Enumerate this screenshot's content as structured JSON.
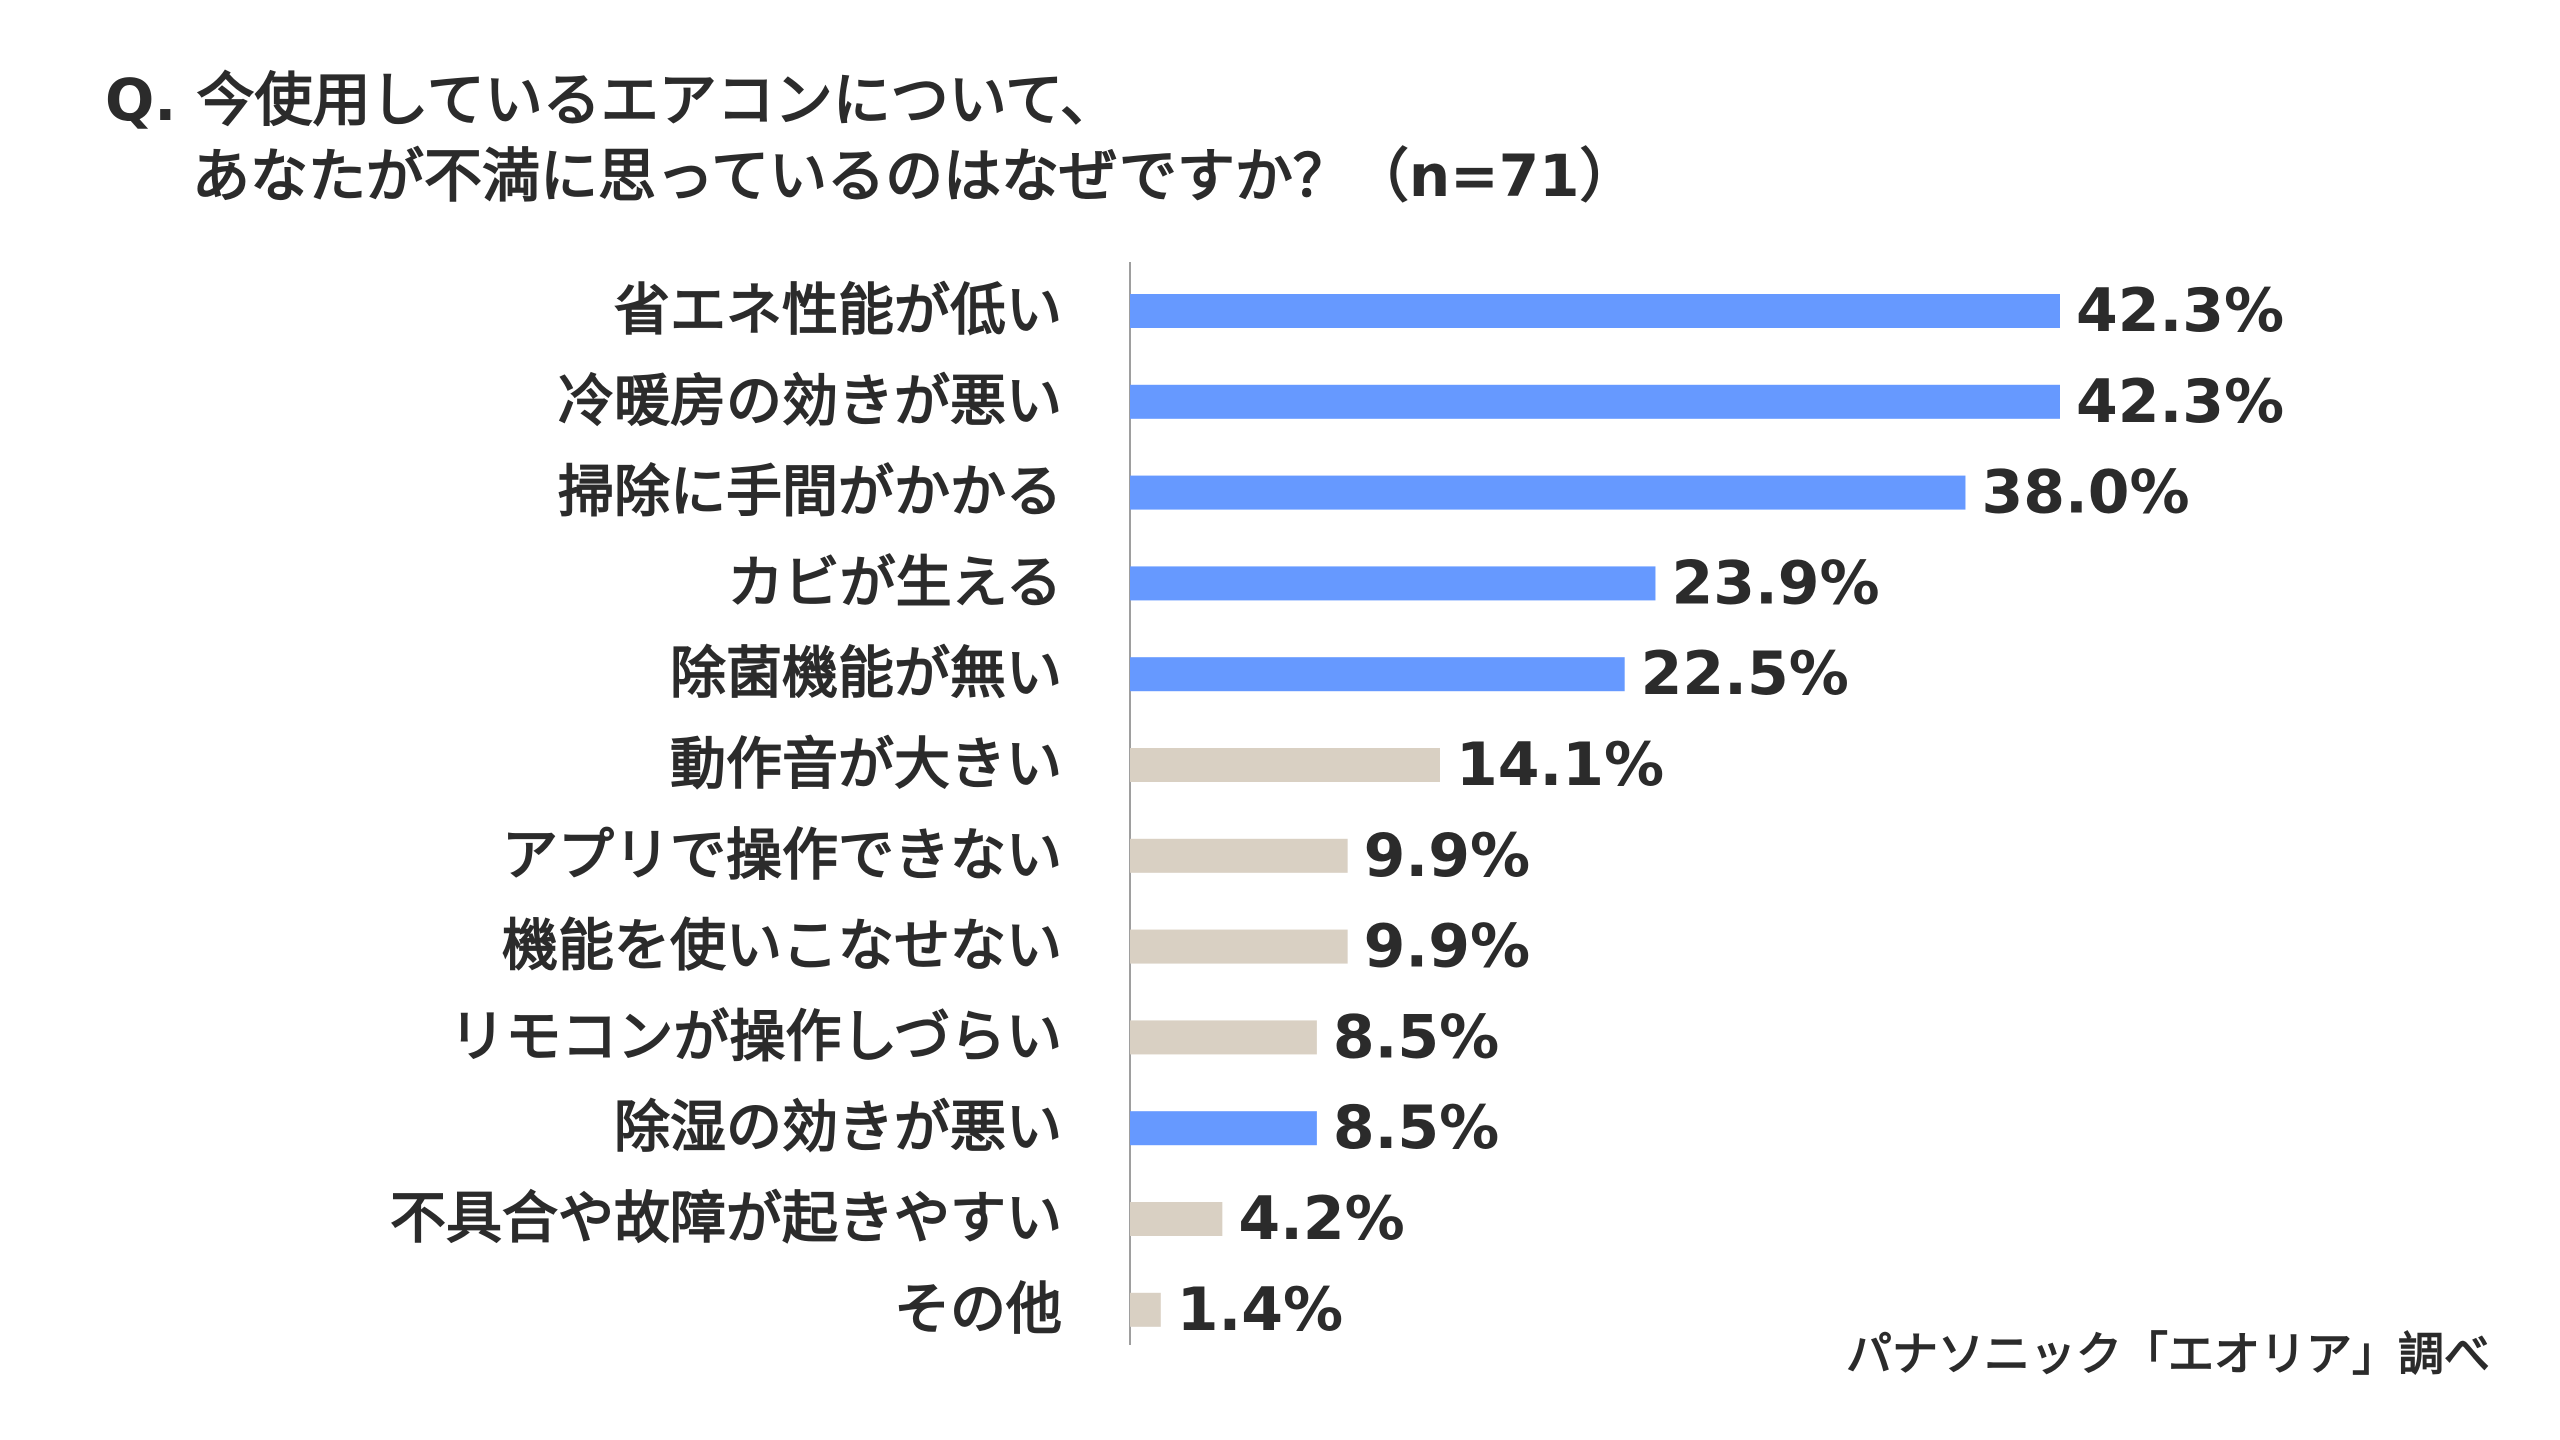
{
  "title": {
    "line1": "Q. 今使用しているエアコンについて、",
    "line2": "あなたが不満に思っているのはなぜですか？（n=71）"
  },
  "source": "パナソニック「エオリア」調べ",
  "colors": {
    "highlight": "#6699ff",
    "other": "#d9d0c3",
    "axis": "#9e9e9e"
  },
  "chart_data": {
    "type": "bar",
    "orientation": "horizontal",
    "title": "今使用しているエアコンについて、あなたが不満に思っているのはなぜですか？（n=71）",
    "n": 71,
    "xlim": [
      0,
      42.3
    ],
    "value_suffix": "%",
    "categories": [
      "省エネ性能が低い",
      "冷暖房の効きが悪い",
      "掃除に手間がかかる",
      "カビが生える",
      "除菌機能が無い",
      "動作音が大きい",
      "アプリで操作できない",
      "機能を使いこなせない",
      "リモコンが操作しづらい",
      "除湿の効きが悪い",
      "不具合や故障が起きやすい",
      "その他"
    ],
    "values": [
      42.3,
      42.3,
      38.0,
      23.9,
      22.5,
      14.1,
      9.9,
      9.9,
      8.5,
      8.5,
      4.2,
      1.4
    ],
    "labels": [
      "42.3%",
      "42.3%",
      "38.0%",
      "23.9%",
      "22.5%",
      "14.1%",
      "9.9%",
      "9.9%",
      "8.5%",
      "8.5%",
      "4.2%",
      "1.4%"
    ],
    "highlighted": [
      true,
      true,
      true,
      true,
      true,
      false,
      false,
      false,
      false,
      true,
      false,
      false
    ]
  }
}
